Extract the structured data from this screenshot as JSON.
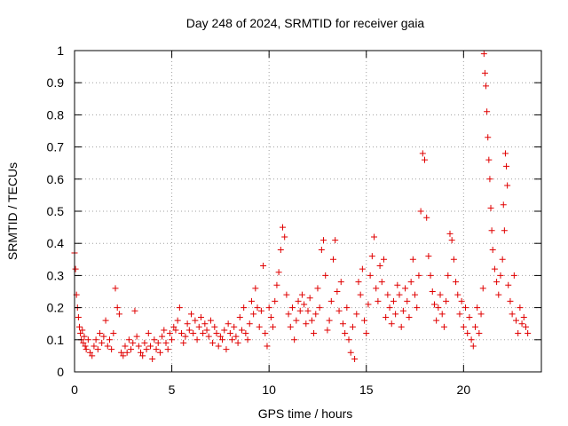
{
  "chart_data": {
    "type": "scatter",
    "title": "Day 248 of 2024, SRMTID for receiver gaia",
    "xlabel": "GPS time / hours",
    "ylabel": "SRMTID / TECUs",
    "xlim": [
      0,
      24
    ],
    "ylim": [
      0,
      1
    ],
    "x_ticks": [
      0,
      5,
      10,
      15,
      20
    ],
    "x_tick_labels": [
      "0",
      "5",
      "10",
      "15",
      "20"
    ],
    "y_ticks": [
      0,
      0.1,
      0.2,
      0.3,
      0.4,
      0.5,
      0.6,
      0.7,
      0.8,
      0.9,
      1
    ],
    "y_tick_labels": [
      "0",
      "0.1",
      "0.2",
      "0.3",
      "0.4",
      "0.5",
      "0.6",
      "0.7",
      "0.8",
      "0.9",
      "1"
    ],
    "grid": true,
    "marker": "+",
    "color": "#e00000",
    "series": [
      {
        "name": "SRMTID",
        "points": [
          [
            0.0,
            0.37
          ],
          [
            0.05,
            0.32
          ],
          [
            0.1,
            0.24
          ],
          [
            0.15,
            0.2
          ],
          [
            0.2,
            0.17
          ],
          [
            0.25,
            0.14
          ],
          [
            0.3,
            0.12
          ],
          [
            0.35,
            0.1
          ],
          [
            0.4,
            0.13
          ],
          [
            0.45,
            0.09
          ],
          [
            0.5,
            0.11
          ],
          [
            0.55,
            0.08
          ],
          [
            0.6,
            0.07
          ],
          [
            0.7,
            0.1
          ],
          [
            0.8,
            0.06
          ],
          [
            0.9,
            0.05
          ],
          [
            1.0,
            0.08
          ],
          [
            1.1,
            0.1
          ],
          [
            1.2,
            0.07
          ],
          [
            1.3,
            0.12
          ],
          [
            1.4,
            0.09
          ],
          [
            1.5,
            0.11
          ],
          [
            1.6,
            0.16
          ],
          [
            1.7,
            0.08
          ],
          [
            1.8,
            0.1
          ],
          [
            1.9,
            0.07
          ],
          [
            2.0,
            0.12
          ],
          [
            2.1,
            0.26
          ],
          [
            2.2,
            0.2
          ],
          [
            2.3,
            0.18
          ],
          [
            2.4,
            0.06
          ],
          [
            2.5,
            0.05
          ],
          [
            2.6,
            0.08
          ],
          [
            2.7,
            0.06
          ],
          [
            2.8,
            0.1
          ],
          [
            2.9,
            0.07
          ],
          [
            3.0,
            0.09
          ],
          [
            3.1,
            0.19
          ],
          [
            3.2,
            0.11
          ],
          [
            3.3,
            0.08
          ],
          [
            3.4,
            0.06
          ],
          [
            3.5,
            0.05
          ],
          [
            3.6,
            0.09
          ],
          [
            3.7,
            0.07
          ],
          [
            3.8,
            0.12
          ],
          [
            3.9,
            0.08
          ],
          [
            4.0,
            0.04
          ],
          [
            4.1,
            0.1
          ],
          [
            4.2,
            0.07
          ],
          [
            4.3,
            0.09
          ],
          [
            4.4,
            0.06
          ],
          [
            4.5,
            0.11
          ],
          [
            4.6,
            0.13
          ],
          [
            4.7,
            0.09
          ],
          [
            4.8,
            0.07
          ],
          [
            4.9,
            0.12
          ],
          [
            5.0,
            0.1
          ],
          [
            5.1,
            0.14
          ],
          [
            5.2,
            0.13
          ],
          [
            5.3,
            0.16
          ],
          [
            5.4,
            0.2
          ],
          [
            5.5,
            0.12
          ],
          [
            5.6,
            0.09
          ],
          [
            5.7,
            0.11
          ],
          [
            5.8,
            0.15
          ],
          [
            5.9,
            0.13
          ],
          [
            6.0,
            0.18
          ],
          [
            6.1,
            0.12
          ],
          [
            6.2,
            0.16
          ],
          [
            6.3,
            0.1
          ],
          [
            6.4,
            0.14
          ],
          [
            6.5,
            0.17
          ],
          [
            6.6,
            0.12
          ],
          [
            6.7,
            0.15
          ],
          [
            6.8,
            0.13
          ],
          [
            6.9,
            0.11
          ],
          [
            7.0,
            0.16
          ],
          [
            7.1,
            0.09
          ],
          [
            7.2,
            0.14
          ],
          [
            7.3,
            0.12
          ],
          [
            7.4,
            0.08
          ],
          [
            7.5,
            0.11
          ],
          [
            7.6,
            0.1
          ],
          [
            7.7,
            0.13
          ],
          [
            7.8,
            0.07
          ],
          [
            7.9,
            0.15
          ],
          [
            8.0,
            0.12
          ],
          [
            8.1,
            0.1
          ],
          [
            8.2,
            0.14
          ],
          [
            8.3,
            0.11
          ],
          [
            8.4,
            0.09
          ],
          [
            8.5,
            0.17
          ],
          [
            8.6,
            0.13
          ],
          [
            8.7,
            0.2
          ],
          [
            8.8,
            0.12
          ],
          [
            8.9,
            0.1
          ],
          [
            9.0,
            0.15
          ],
          [
            9.1,
            0.22
          ],
          [
            9.2,
            0.18
          ],
          [
            9.3,
            0.26
          ],
          [
            9.4,
            0.2
          ],
          [
            9.5,
            0.14
          ],
          [
            9.6,
            0.19
          ],
          [
            9.7,
            0.33
          ],
          [
            9.8,
            0.12
          ],
          [
            9.9,
            0.08
          ],
          [
            10.0,
            0.2
          ],
          [
            10.1,
            0.17
          ],
          [
            10.2,
            0.14
          ],
          [
            10.3,
            0.22
          ],
          [
            10.4,
            0.27
          ],
          [
            10.5,
            0.31
          ],
          [
            10.6,
            0.38
          ],
          [
            10.7,
            0.45
          ],
          [
            10.8,
            0.42
          ],
          [
            10.9,
            0.24
          ],
          [
            11.0,
            0.18
          ],
          [
            11.1,
            0.14
          ],
          [
            11.2,
            0.2
          ],
          [
            11.3,
            0.1
          ],
          [
            11.4,
            0.16
          ],
          [
            11.5,
            0.22
          ],
          [
            11.6,
            0.19
          ],
          [
            11.7,
            0.24
          ],
          [
            11.8,
            0.21
          ],
          [
            11.9,
            0.15
          ],
          [
            12.0,
            0.19
          ],
          [
            12.1,
            0.23
          ],
          [
            12.2,
            0.16
          ],
          [
            12.3,
            0.12
          ],
          [
            12.4,
            0.18
          ],
          [
            12.5,
            0.26
          ],
          [
            12.6,
            0.2
          ],
          [
            12.7,
            0.38
          ],
          [
            12.8,
            0.41
          ],
          [
            12.9,
            0.3
          ],
          [
            13.0,
            0.13
          ],
          [
            13.1,
            0.16
          ],
          [
            13.2,
            0.22
          ],
          [
            13.3,
            0.35
          ],
          [
            13.4,
            0.41
          ],
          [
            13.5,
            0.25
          ],
          [
            13.6,
            0.19
          ],
          [
            13.7,
            0.28
          ],
          [
            13.8,
            0.15
          ],
          [
            13.9,
            0.12
          ],
          [
            14.0,
            0.2
          ],
          [
            14.1,
            0.1
          ],
          [
            14.2,
            0.06
          ],
          [
            14.3,
            0.14
          ],
          [
            14.4,
            0.04
          ],
          [
            14.5,
            0.18
          ],
          [
            14.6,
            0.28
          ],
          [
            14.7,
            0.24
          ],
          [
            14.8,
            0.32
          ],
          [
            14.9,
            0.16
          ],
          [
            15.0,
            0.12
          ],
          [
            15.1,
            0.21
          ],
          [
            15.2,
            0.3
          ],
          [
            15.3,
            0.36
          ],
          [
            15.4,
            0.42
          ],
          [
            15.5,
            0.26
          ],
          [
            15.6,
            0.22
          ],
          [
            15.7,
            0.33
          ],
          [
            15.8,
            0.28
          ],
          [
            15.9,
            0.35
          ],
          [
            16.0,
            0.17
          ],
          [
            16.1,
            0.24
          ],
          [
            16.2,
            0.2
          ],
          [
            16.3,
            0.15
          ],
          [
            16.4,
            0.22
          ],
          [
            16.5,
            0.18
          ],
          [
            16.6,
            0.27
          ],
          [
            16.7,
            0.24
          ],
          [
            16.8,
            0.14
          ],
          [
            16.9,
            0.19
          ],
          [
            17.0,
            0.26
          ],
          [
            17.1,
            0.22
          ],
          [
            17.2,
            0.17
          ],
          [
            17.3,
            0.28
          ],
          [
            17.4,
            0.35
          ],
          [
            17.5,
            0.24
          ],
          [
            17.6,
            0.2
          ],
          [
            17.7,
            0.3
          ],
          [
            17.8,
            0.5
          ],
          [
            17.9,
            0.68
          ],
          [
            18.0,
            0.66
          ],
          [
            18.1,
            0.48
          ],
          [
            18.2,
            0.36
          ],
          [
            18.3,
            0.3
          ],
          [
            18.4,
            0.25
          ],
          [
            18.5,
            0.21
          ],
          [
            18.6,
            0.16
          ],
          [
            18.7,
            0.2
          ],
          [
            18.8,
            0.24
          ],
          [
            18.9,
            0.18
          ],
          [
            19.0,
            0.14
          ],
          [
            19.1,
            0.22
          ],
          [
            19.2,
            0.3
          ],
          [
            19.3,
            0.43
          ],
          [
            19.4,
            0.41
          ],
          [
            19.5,
            0.35
          ],
          [
            19.6,
            0.28
          ],
          [
            19.7,
            0.24
          ],
          [
            19.8,
            0.18
          ],
          [
            19.9,
            0.22
          ],
          [
            20.0,
            0.14
          ],
          [
            20.1,
            0.2
          ],
          [
            20.2,
            0.12
          ],
          [
            20.3,
            0.17
          ],
          [
            20.4,
            0.1
          ],
          [
            20.5,
            0.08
          ],
          [
            20.6,
            0.14
          ],
          [
            20.7,
            0.2
          ],
          [
            20.8,
            0.12
          ],
          [
            20.9,
            0.18
          ],
          [
            21.0,
            0.26
          ],
          [
            21.05,
            0.99
          ],
          [
            21.1,
            0.93
          ],
          [
            21.15,
            0.89
          ],
          [
            21.2,
            0.81
          ],
          [
            21.25,
            0.73
          ],
          [
            21.3,
            0.66
          ],
          [
            21.35,
            0.6
          ],
          [
            21.4,
            0.51
          ],
          [
            21.45,
            0.44
          ],
          [
            21.5,
            0.38
          ],
          [
            21.6,
            0.32
          ],
          [
            21.7,
            0.28
          ],
          [
            21.8,
            0.24
          ],
          [
            21.9,
            0.3
          ],
          [
            22.0,
            0.35
          ],
          [
            22.05,
            0.52
          ],
          [
            22.1,
            0.44
          ],
          [
            22.15,
            0.68
          ],
          [
            22.2,
            0.64
          ],
          [
            22.25,
            0.58
          ],
          [
            22.3,
            0.27
          ],
          [
            22.4,
            0.22
          ],
          [
            22.5,
            0.18
          ],
          [
            22.6,
            0.3
          ],
          [
            22.7,
            0.16
          ],
          [
            22.8,
            0.12
          ],
          [
            22.9,
            0.2
          ],
          [
            23.0,
            0.15
          ],
          [
            23.1,
            0.17
          ],
          [
            23.2,
            0.14
          ],
          [
            23.3,
            0.12
          ]
        ]
      }
    ]
  }
}
